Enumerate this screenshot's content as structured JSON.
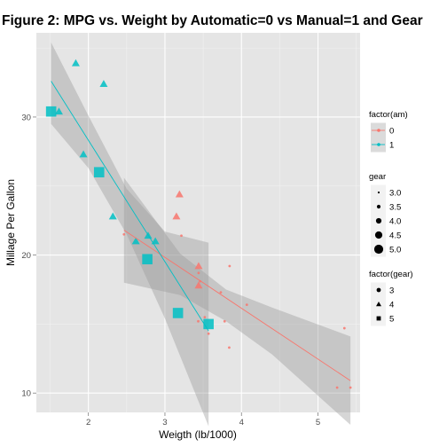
{
  "chart_data": {
    "type": "scatter",
    "title": "Figure 2: MPG vs. Weight by Automatic=0 vs Manual=1 and Gear",
    "xlabel": "Weigth (lb/1000)",
    "ylabel": "Millage Per Gallon",
    "xlim": [
      1.32,
      5.55
    ],
    "ylim": [
      8.6,
      36.1
    ],
    "x_ticks": [
      2,
      3,
      4,
      5
    ],
    "y_ticks": [
      10,
      20,
      30
    ],
    "x_tick_labels": [
      "2",
      "3",
      "4",
      "5"
    ],
    "y_tick_labels": [
      "10",
      "20",
      "30"
    ],
    "grid": true,
    "legend_position": "right",
    "colors": {
      "0": "#F8766D",
      "1": "#00BFC4",
      "panel": "#E5E5E5",
      "grid": "#FFFFFF",
      "ribbon": "#999999"
    },
    "legends": [
      {
        "title": "factor(am)",
        "kind": "color",
        "entries": [
          {
            "label": "0",
            "color": "#F8766D"
          },
          {
            "label": "1",
            "color": "#00BFC4"
          }
        ]
      },
      {
        "title": "gear",
        "kind": "size",
        "entries": [
          {
            "label": "3.0",
            "value": 3.0
          },
          {
            "label": "3.5",
            "value": 3.5
          },
          {
            "label": "4.0",
            "value": 4.0
          },
          {
            "label": "4.5",
            "value": 4.5
          },
          {
            "label": "5.0",
            "value": 5.0
          }
        ]
      },
      {
        "title": "factor(gear)",
        "kind": "shape",
        "entries": [
          {
            "label": "3",
            "shape": "circle"
          },
          {
            "label": "4",
            "shape": "triangle"
          },
          {
            "label": "5",
            "shape": "square"
          }
        ]
      }
    ],
    "series": [
      {
        "am": "0",
        "points": [
          {
            "wt": 3.215,
            "mpg": 21.4,
            "gear": 3
          },
          {
            "wt": 3.44,
            "mpg": 18.7,
            "gear": 3
          },
          {
            "wt": 3.46,
            "mpg": 18.1,
            "gear": 3
          },
          {
            "wt": 3.57,
            "mpg": 14.3,
            "gear": 3
          },
          {
            "wt": 3.19,
            "mpg": 24.4,
            "gear": 4
          },
          {
            "wt": 3.15,
            "mpg": 22.8,
            "gear": 4
          },
          {
            "wt": 3.44,
            "mpg": 19.2,
            "gear": 4
          },
          {
            "wt": 3.44,
            "mpg": 17.8,
            "gear": 4
          },
          {
            "wt": 4.07,
            "mpg": 16.4,
            "gear": 3
          },
          {
            "wt": 3.73,
            "mpg": 17.3,
            "gear": 3
          },
          {
            "wt": 3.78,
            "mpg": 15.2,
            "gear": 3
          },
          {
            "wt": 5.25,
            "mpg": 10.4,
            "gear": 3
          },
          {
            "wt": 5.424,
            "mpg": 10.4,
            "gear": 3
          },
          {
            "wt": 5.345,
            "mpg": 14.7,
            "gear": 3
          },
          {
            "wt": 2.465,
            "mpg": 21.5,
            "gear": 3
          },
          {
            "wt": 3.52,
            "mpg": 15.5,
            "gear": 3
          },
          {
            "wt": 3.435,
            "mpg": 15.2,
            "gear": 3
          },
          {
            "wt": 3.84,
            "mpg": 13.3,
            "gear": 3
          },
          {
            "wt": 3.845,
            "mpg": 19.2,
            "gear": 3
          }
        ]
      },
      {
        "am": "1",
        "points": [
          {
            "wt": 2.62,
            "mpg": 21.0,
            "gear": 4
          },
          {
            "wt": 2.875,
            "mpg": 21.0,
            "gear": 4
          },
          {
            "wt": 2.32,
            "mpg": 22.8,
            "gear": 4
          },
          {
            "wt": 2.2,
            "mpg": 32.4,
            "gear": 4
          },
          {
            "wt": 1.615,
            "mpg": 30.4,
            "gear": 4
          },
          {
            "wt": 1.835,
            "mpg": 33.9,
            "gear": 4
          },
          {
            "wt": 1.935,
            "mpg": 27.3,
            "gear": 4
          },
          {
            "wt": 2.78,
            "mpg": 21.4,
            "gear": 4
          },
          {
            "wt": 2.14,
            "mpg": 26.0,
            "gear": 5
          },
          {
            "wt": 1.513,
            "mpg": 30.4,
            "gear": 5
          },
          {
            "wt": 3.17,
            "mpg": 15.8,
            "gear": 5
          },
          {
            "wt": 2.77,
            "mpg": 19.7,
            "gear": 5
          },
          {
            "wt": 3.57,
            "mpg": 15.0,
            "gear": 5
          }
        ]
      }
    ],
    "fits": [
      {
        "am": "0",
        "x": [
          2.465,
          5.424
        ],
        "y": [
          21.8,
          10.9
        ],
        "band_x": [
          2.465,
          3.2,
          3.8,
          4.4,
          5.424
        ],
        "band_lower": [
          18.0,
          17.1,
          15.2,
          12.8,
          7.7
        ],
        "band_upper": [
          25.6,
          20.1,
          17.5,
          16.2,
          14.1
        ]
      },
      {
        "am": "1",
        "x": [
          1.513,
          3.57
        ],
        "y": [
          32.6,
          14.5
        ],
        "band_x": [
          1.513,
          2.0,
          2.5,
          3.0,
          3.57
        ],
        "band_lower": [
          29.5,
          26.3,
          21.5,
          15.4,
          7.6
        ],
        "band_upper": [
          35.4,
          30.1,
          24.8,
          21.7,
          20.9
        ]
      }
    ]
  }
}
